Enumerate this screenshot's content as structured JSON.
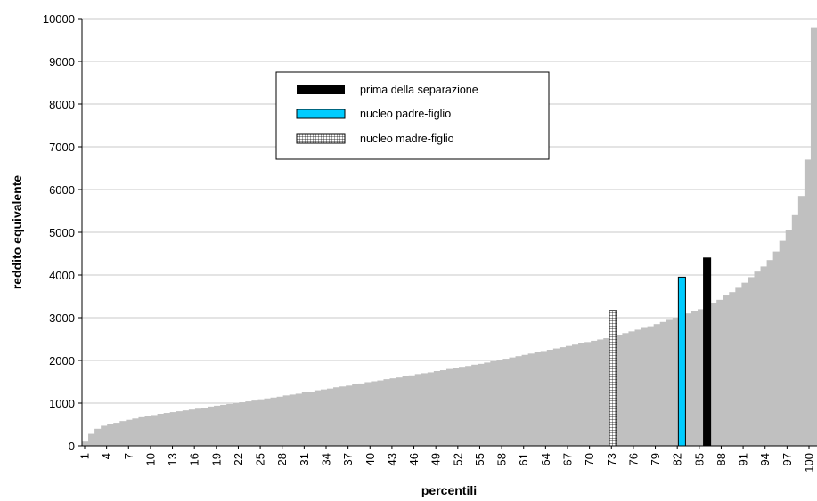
{
  "chart_data": {
    "type": "bar",
    "title": "",
    "xlabel": "percentili",
    "ylabel": "reddito equivalente",
    "ylim": [
      0,
      10000
    ],
    "yticks": [
      0,
      1000,
      2000,
      3000,
      4000,
      5000,
      6000,
      7000,
      8000,
      9000,
      10000
    ],
    "xtick_labels": [
      "1",
      "4",
      "7",
      "10",
      "13",
      "16",
      "19",
      "22",
      "25",
      "28",
      "31",
      "34",
      "37",
      "40",
      "43",
      "46",
      "49",
      "52",
      "55",
      "58",
      "61",
      "64",
      "67",
      "70",
      "73",
      "76",
      "79",
      "82",
      "85",
      "88",
      "91",
      "94",
      "97",
      "100"
    ],
    "grid": "horizontal",
    "legend_position": "inside-top-center",
    "colors": {
      "distribution": "#c0c0c0",
      "prima": "#000000",
      "padre": "#00ccff",
      "madre_fill": "#ffffff",
      "madre_hatch": "#000000",
      "gridline": "#c8c8c8"
    },
    "series": [
      {
        "key": "distribution",
        "values": [
          100,
          280,
          400,
          470,
          510,
          540,
          580,
          610,
          640,
          670,
          700,
          720,
          750,
          770,
          790,
          810,
          830,
          850,
          870,
          890,
          920,
          940,
          960,
          980,
          1000,
          1020,
          1040,
          1060,
          1090,
          1110,
          1130,
          1150,
          1180,
          1200,
          1220,
          1250,
          1270,
          1300,
          1320,
          1340,
          1370,
          1390,
          1410,
          1440,
          1460,
          1490,
          1510,
          1530,
          1560,
          1580,
          1600,
          1630,
          1650,
          1680,
          1700,
          1720,
          1750,
          1770,
          1800,
          1820,
          1850,
          1870,
          1900,
          1920,
          1950,
          1980,
          2010,
          2040,
          2070,
          2100,
          2130,
          2160,
          2190,
          2220,
          2250,
          2280,
          2310,
          2340,
          2370,
          2400,
          2430,
          2460,
          2490,
          2520,
          2560,
          2600,
          2640,
          2680,
          2720,
          2760,
          2800,
          2850,
          2900,
          2950,
          3000,
          3050,
          3100,
          3150,
          3200,
          3280,
          3350,
          3420,
          3520,
          3600,
          3700,
          3820,
          3950,
          4080,
          4200,
          4350,
          4550,
          4800,
          5050,
          5400,
          5850,
          6700,
          9800
        ]
      },
      {
        "key": "madre",
        "name": "nucleo madre-figlio",
        "bar_index": 84,
        "value": 3170
      },
      {
        "key": "padre",
        "name": "nucleo padre-figlio",
        "bar_index": 95,
        "value": 3950
      },
      {
        "key": "prima",
        "name": "prima della separazione",
        "bar_index": 99,
        "value": 4400
      }
    ],
    "legend": [
      {
        "key": "prima",
        "label": "prima della separazione"
      },
      {
        "key": "padre",
        "label": "nucleo padre-figlio"
      },
      {
        "key": "madre",
        "label": "nucleo madre-figlio"
      }
    ]
  }
}
